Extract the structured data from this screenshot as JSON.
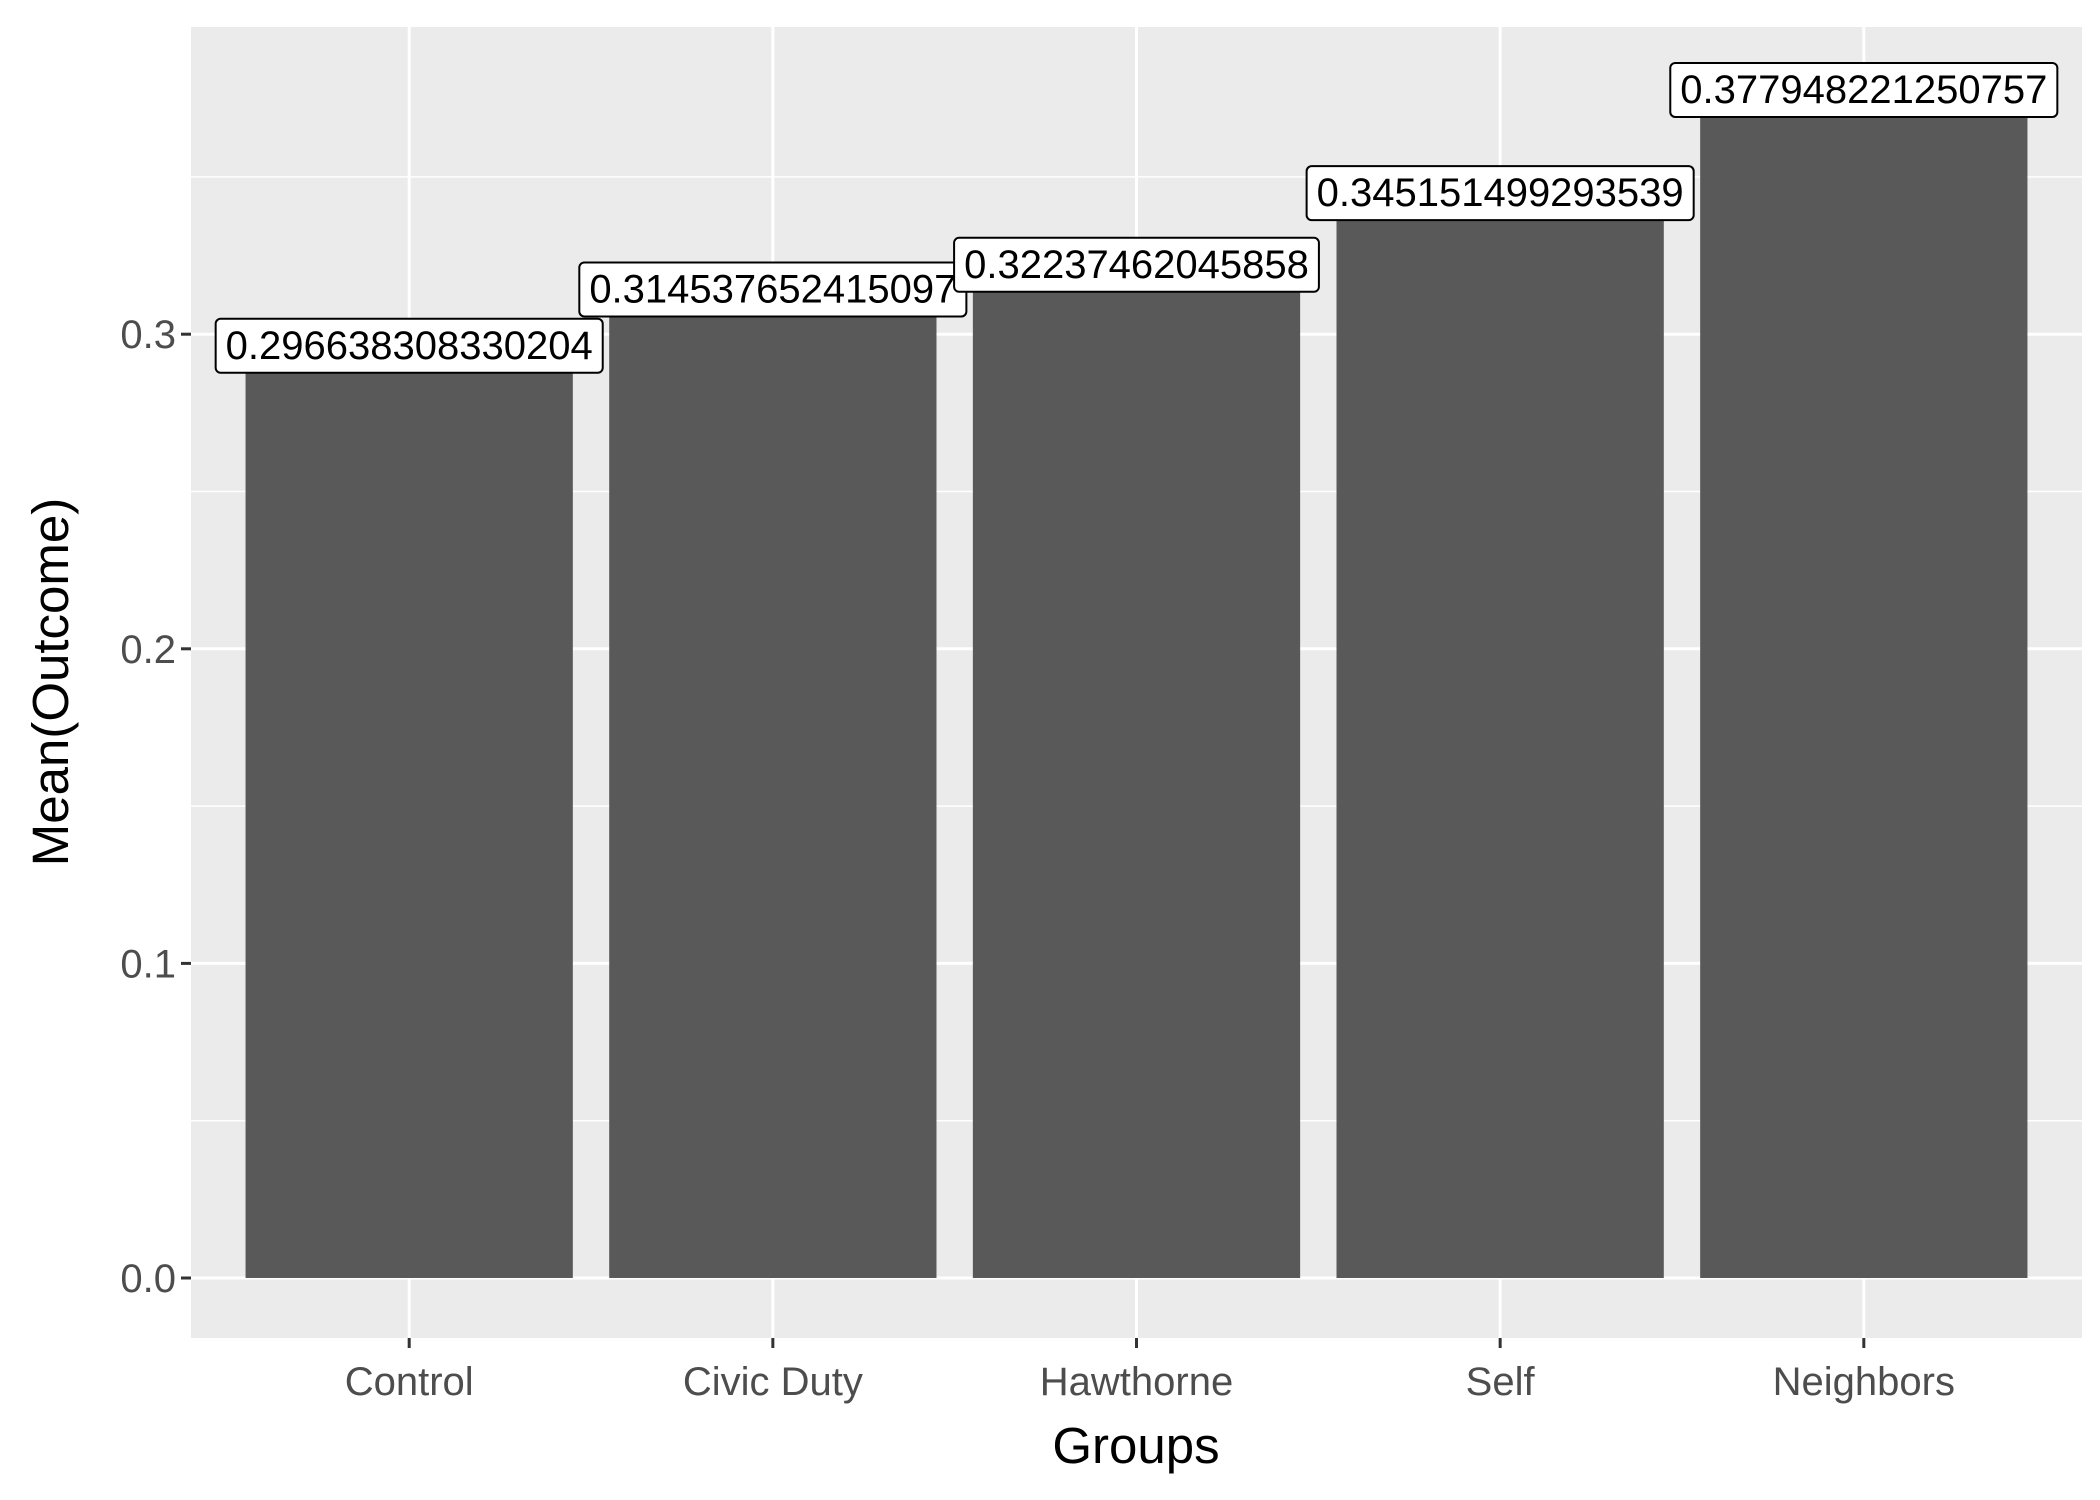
{
  "chart_data": {
    "type": "bar",
    "title": "",
    "xlabel": "Groups",
    "ylabel": "Mean(Outcome)",
    "categories": [
      "Control",
      "Civic Duty",
      "Hawthorne",
      "Self",
      "Neighbors"
    ],
    "values": [
      0.296638308330204,
      0.314537652415097,
      0.32237462045858,
      0.345151499293539,
      0.377948221250757
    ],
    "data_labels": [
      "0.296638308330204",
      "0.314537652415097",
      "0.32237462045858",
      "0.345151499293539",
      "0.377948221250757"
    ],
    "yticks": [
      "0.0",
      "0.1",
      "0.2",
      "0.3"
    ],
    "ylim": [
      -0.019,
      0.397
    ],
    "grid": true,
    "legend": "none",
    "colors": {
      "bar": "#595959",
      "panel": "#ebebeb",
      "grid": "#ffffff",
      "label_fill": "#ffffff",
      "label_border": "#000000"
    }
  }
}
